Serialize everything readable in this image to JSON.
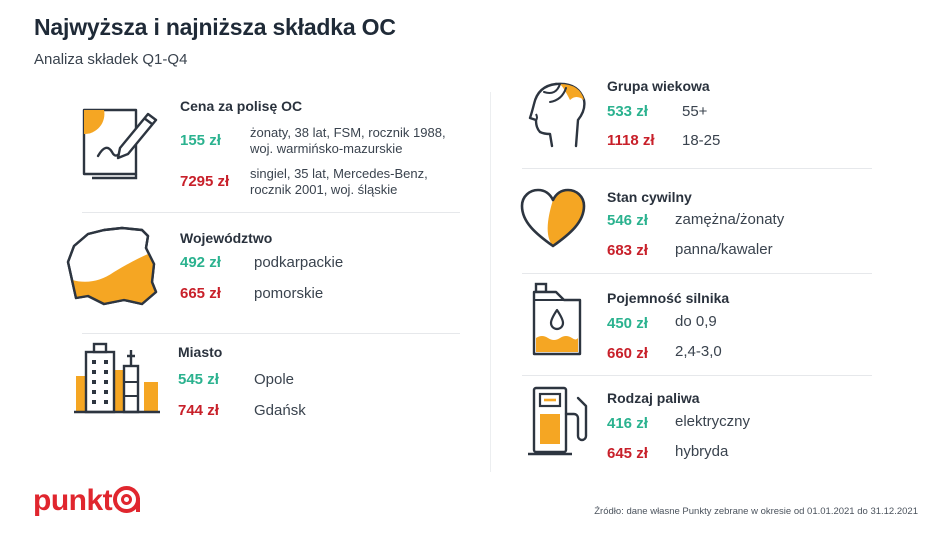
{
  "header": {
    "title": "Najwyższa i najniższa składka OC",
    "subtitle": "Analiza składek Q1-Q4"
  },
  "colors": {
    "low": "#2bb28f",
    "high": "#c8202a",
    "accent": "#f5a623",
    "stroke": "#2d3540",
    "brand": "#e0262e"
  },
  "left": {
    "policy": {
      "title": "Cena za polisę OC",
      "icon": "document-pen-icon",
      "low_price": "155 zł",
      "low_desc_1": "żonaty, 38 lat, FSM, rocznik 1988,",
      "low_desc_2": "woj. warmińsko-mazurskie",
      "high_price": "7295 zł",
      "high_desc_1": "singiel, 35 lat, Mercedes-Benz,",
      "high_desc_2": "rocznik 2001, woj. śląskie"
    },
    "voivodeship": {
      "title": "Województwo",
      "icon": "poland-map-icon",
      "low_price": "492 zł",
      "low_desc": "podkarpackie",
      "high_price": "665 zł",
      "high_desc": "pomorskie"
    },
    "city": {
      "title": "Miasto",
      "icon": "city-buildings-icon",
      "low_price": "545 zł",
      "low_desc": "Opole",
      "high_price": "744 zł",
      "high_desc": "Gdańsk"
    }
  },
  "right": {
    "age": {
      "title": "Grupa wiekowa",
      "icon": "head-profile-icon",
      "low_price": "533 zł",
      "low_desc": "55+",
      "high_price": "1118 zł",
      "high_desc": "18-25"
    },
    "marital": {
      "title": "Stan cywilny",
      "icon": "heart-icon",
      "low_price": "546 zł",
      "low_desc": "zamężna/żonaty",
      "high_price": "683 zł",
      "high_desc": "panna/kawaler"
    },
    "engine": {
      "title": "Pojemność silnika",
      "icon": "oil-canister-icon",
      "low_price": "450 zł",
      "low_desc": "do 0,9",
      "high_price": "660 zł",
      "high_desc": "2,4-3,0"
    },
    "fuel": {
      "title": "Rodzaj paliwa",
      "icon": "fuel-pump-icon",
      "low_price": "416 zł",
      "low_desc": "elektryczny",
      "high_price": "645 zł",
      "high_desc": "hybryda"
    }
  },
  "footer": {
    "logo_text": "punkt",
    "source": "Źródło: dane własne Punkty zebrane w okresie od 01.01.2021 do 31.12.2021"
  }
}
